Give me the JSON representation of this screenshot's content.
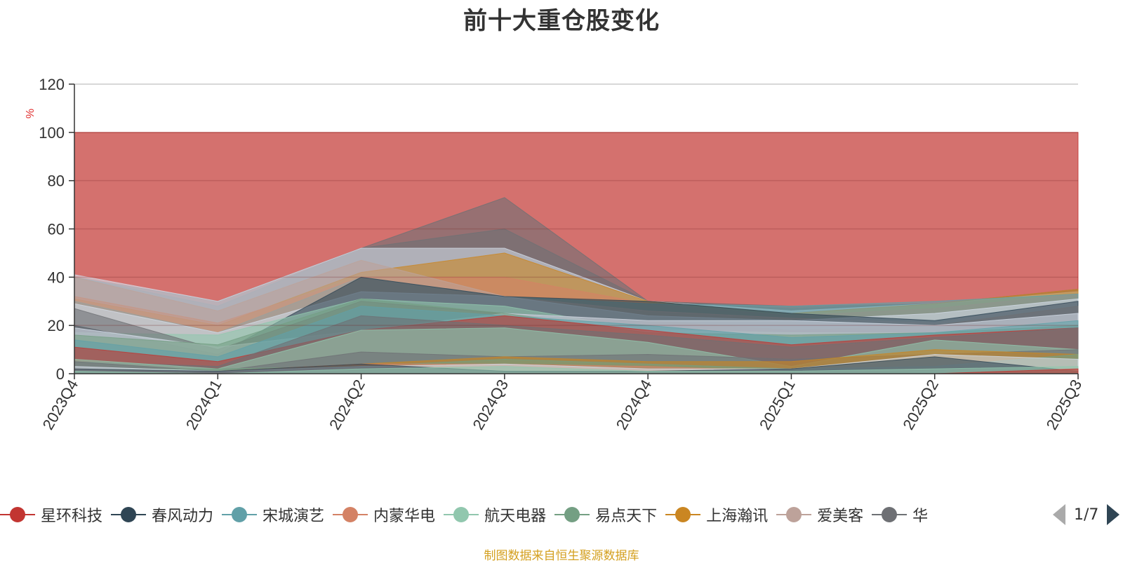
{
  "chart_data": {
    "type": "area",
    "title": "前十大重仓股变化",
    "ylabel": "%",
    "ylim": [
      0,
      120
    ],
    "yticks": [
      0,
      20,
      40,
      60,
      80,
      100,
      120
    ],
    "categories": [
      "2023Q4",
      "2024Q1",
      "2024Q2",
      "2024Q3",
      "2024Q4",
      "2025Q1",
      "2025Q2",
      "2025Q3"
    ],
    "grid": true,
    "legend_position": "bottom",
    "legend_page": "1/7",
    "source": "制图数据来自恒生聚源数据库",
    "colors": {
      "星环科技": "#c23531",
      "春风动力": "#2f4554",
      "宋城演艺": "#61a0a8",
      "内蒙华电": "#d48265",
      "航天电器": "#91c7ae",
      "易点天下": "#749f83",
      "上海瀚讯": "#ca8622",
      "爱美客": "#bda29a",
      "华": "#6e7074",
      "other_fill": "#d2dbe6"
    },
    "legend": [
      {
        "name": "星环科技",
        "color": "#c23531"
      },
      {
        "name": "春风动力",
        "color": "#2f4554"
      },
      {
        "name": "宋城演艺",
        "color": "#61a0a8"
      },
      {
        "name": "内蒙华电",
        "color": "#d48265"
      },
      {
        "name": "航天电器",
        "color": "#91c7ae"
      },
      {
        "name": "易点天下",
        "color": "#749f83"
      },
      {
        "name": "上海瀚讯",
        "color": "#ca8622"
      },
      {
        "name": "爱美客",
        "color": "#bda29a"
      },
      {
        "name": "华",
        "color": "#6e7074"
      }
    ],
    "areas": [
      {
        "color": "#c23531",
        "values": [
          100,
          100,
          100,
          100,
          100,
          100,
          100,
          100
        ]
      },
      {
        "color": "#6e7074",
        "values": [
          40,
          30,
          52,
          73,
          30,
          28,
          29,
          34
        ]
      },
      {
        "color": "#6e7074",
        "values": [
          40,
          28,
          52,
          60,
          30,
          27,
          29,
          35
        ]
      },
      {
        "color": "#d2dbe6",
        "values": [
          41,
          30,
          52,
          52,
          30,
          26,
          29,
          34
        ]
      },
      {
        "color": "#ca8622",
        "values": [
          31,
          20,
          42,
          50,
          30,
          25,
          29,
          35
        ]
      },
      {
        "color": "#d48265",
        "values": [
          32,
          21,
          40,
          40,
          29,
          24,
          27,
          33
        ]
      },
      {
        "color": "#61a0a8",
        "values": [
          30,
          17,
          40,
          32,
          29,
          28,
          30,
          33
        ]
      },
      {
        "color": "#bda29a",
        "values": [
          40,
          26,
          47,
          32,
          26,
          23,
          21,
          30
        ]
      },
      {
        "color": "#d2dbe6",
        "values": [
          29,
          17,
          34,
          32,
          24,
          22,
          25,
          31
        ]
      },
      {
        "color": "#2f4554",
        "values": [
          20,
          8,
          40,
          32,
          30,
          25,
          22,
          30
        ]
      },
      {
        "color": "#91c7ae",
        "values": [
          17,
          16,
          31,
          28,
          18,
          17,
          17,
          22
        ]
      },
      {
        "color": "#6e7074",
        "values": [
          27,
          10,
          30,
          25,
          22,
          18,
          20,
          28
        ]
      },
      {
        "color": "#d2dbe6",
        "values": [
          19,
          11,
          18,
          25,
          22,
          22,
          20,
          25
        ]
      },
      {
        "color": "#749f83",
        "values": [
          16,
          12,
          31,
          25,
          17,
          16,
          17,
          20
        ]
      },
      {
        "color": "#61a0a8",
        "values": [
          14,
          7,
          28,
          24,
          20,
          15,
          17,
          22
        ]
      },
      {
        "color": "#c23531",
        "values": [
          11,
          5,
          18,
          24,
          18,
          12,
          16,
          19
        ]
      },
      {
        "color": "#6e7074",
        "values": [
          5,
          3,
          24,
          20,
          16,
          11,
          15,
          19
        ]
      },
      {
        "color": "#91c7ae",
        "values": [
          6,
          2,
          18,
          19,
          13,
          3,
          14,
          10
        ]
      },
      {
        "color": "#6e7074",
        "values": [
          5,
          1,
          9,
          7,
          8,
          6,
          8,
          10
        ]
      },
      {
        "color": "#ca8622",
        "values": [
          2,
          1,
          4,
          7,
          5,
          5,
          10,
          8
        ]
      },
      {
        "color": "#749f83",
        "values": [
          2,
          2,
          3,
          6,
          4,
          2,
          3,
          8
        ]
      },
      {
        "color": "#d48265",
        "values": [
          2,
          1,
          4,
          4,
          3,
          1,
          2,
          2
        ]
      },
      {
        "color": "#d2dbe6",
        "values": [
          3,
          1,
          3,
          4,
          2,
          2,
          8,
          6
        ]
      },
      {
        "color": "#2f4554",
        "values": [
          2,
          1,
          4,
          1,
          1,
          2,
          7,
          1
        ]
      },
      {
        "color": "#91c7ae",
        "values": [
          1,
          0,
          2,
          3,
          1,
          1,
          2,
          3
        ]
      },
      {
        "color": "#c23531",
        "values": [
          0,
          0,
          0,
          0,
          0,
          0,
          0,
          2
        ]
      }
    ]
  }
}
